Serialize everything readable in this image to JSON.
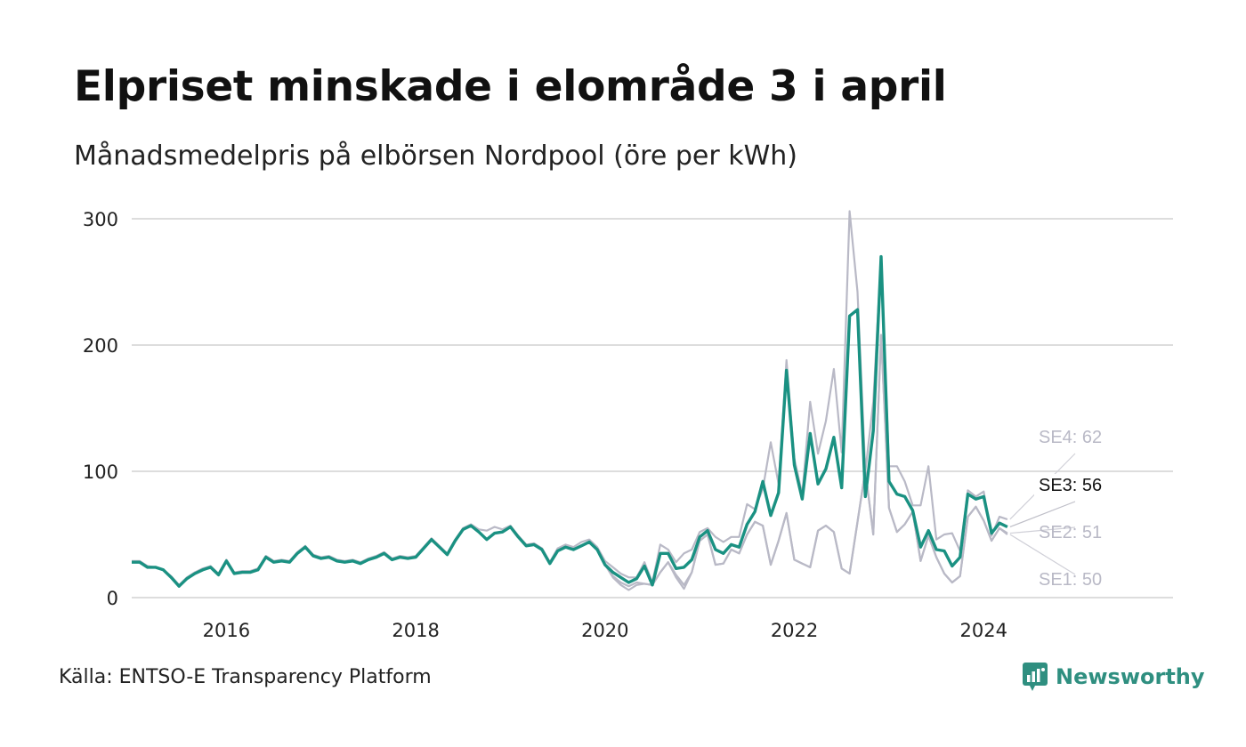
{
  "header": {
    "title": "Elpriset minskade i elområde 3 i april",
    "subtitle": "Månadsmedelpris på elbörsen Nordpool (öre per kWh)"
  },
  "footer": {
    "source": "Källa: ENTSO-E Transparency Platform",
    "brand": "Newsworthy",
    "brand_icon": "bar-chart-icon"
  },
  "colors": {
    "highlight": "#1a9182",
    "context": "#b9b9c6",
    "grid": "#dddddd",
    "brand": "#2f8f80"
  },
  "chart_data": {
    "type": "line",
    "title": "Elpriset minskade i elområde 3 i april",
    "subtitle": "Månadsmedelpris på elbörsen Nordpool (öre per kWh)",
    "xlabel": "",
    "ylabel": "",
    "ylim": [
      0,
      300
    ],
    "yticks": [
      0,
      100,
      200,
      300
    ],
    "xlim": [
      2015.0,
      2026.0
    ],
    "xticks": [
      2016,
      2018,
      2020,
      2022,
      2024
    ],
    "x_start": "2015-01",
    "x_step": "month",
    "grid": true,
    "legend": "direct labels at line ends",
    "highlight": "SE3",
    "series": [
      {
        "name": "SE3",
        "label": "SE3: 56",
        "values": [
          28,
          28,
          24,
          24,
          22,
          16,
          9,
          15,
          19,
          22,
          24,
          18,
          29,
          19,
          20,
          20,
          22,
          32,
          28,
          29,
          28,
          35,
          40,
          33,
          31,
          32,
          29,
          28,
          29,
          27,
          30,
          32,
          35,
          30,
          32,
          31,
          32,
          39,
          46,
          40,
          34,
          45,
          54,
          57,
          52,
          46,
          51,
          52,
          56,
          48,
          41,
          42,
          38,
          27,
          37,
          40,
          38,
          41,
          44,
          38,
          26,
          20,
          16,
          12,
          15,
          25,
          10,
          35,
          35,
          23,
          24,
          30,
          48,
          53,
          38,
          35,
          42,
          40,
          58,
          68,
          92,
          65,
          83,
          180,
          105,
          78,
          130,
          90,
          102,
          127,
          87,
          223,
          228,
          80,
          132,
          270,
          92,
          82,
          80,
          69,
          40,
          53,
          38,
          37,
          25,
          32,
          82,
          78,
          80,
          51,
          59,
          56
        ],
        "end_value": 56
      },
      {
        "name": "SE4",
        "label": "SE4: 62",
        "values": [
          29,
          29,
          25,
          24,
          22,
          17,
          10,
          16,
          20,
          23,
          25,
          19,
          30,
          20,
          21,
          21,
          23,
          33,
          29,
          30,
          29,
          36,
          41,
          34,
          32,
          33,
          30,
          29,
          30,
          28,
          31,
          33,
          36,
          31,
          33,
          32,
          33,
          40,
          47,
          41,
          35,
          46,
          55,
          58,
          54,
          53,
          56,
          54,
          57,
          49,
          42,
          43,
          39,
          28,
          39,
          42,
          40,
          44,
          46,
          40,
          29,
          24,
          19,
          16,
          16,
          28,
          12,
          42,
          38,
          28,
          35,
          38,
          52,
          55,
          48,
          44,
          48,
          48,
          74,
          70,
          86,
          123,
          90,
          188,
          110,
          82,
          155,
          114,
          140,
          181,
          115,
          306,
          242,
          100,
          155,
          270,
          104,
          104,
          92,
          73,
          73,
          104,
          46,
          50,
          51,
          37,
          85,
          80,
          84,
          49,
          64,
          62
        ],
        "end_value": 62
      },
      {
        "name": "SE2",
        "label": "SE2: 51",
        "values": [
          28,
          28,
          24,
          24,
          22,
          16,
          9,
          15,
          19,
          22,
          24,
          18,
          29,
          19,
          20,
          20,
          22,
          32,
          28,
          29,
          28,
          35,
          40,
          33,
          31,
          32,
          29,
          28,
          29,
          27,
          30,
          32,
          35,
          30,
          32,
          31,
          32,
          39,
          46,
          40,
          34,
          45,
          54,
          57,
          52,
          46,
          51,
          52,
          56,
          48,
          41,
          42,
          38,
          27,
          37,
          40,
          38,
          41,
          44,
          38,
          26,
          17,
          12,
          9,
          12,
          11,
          10,
          20,
          28,
          18,
          10,
          20,
          45,
          50,
          26,
          27,
          38,
          35,
          50,
          60,
          57,
          26,
          45,
          67,
          30,
          27,
          24,
          53,
          57,
          52,
          23,
          19,
          60,
          101,
          50,
          208,
          71,
          52,
          58,
          68,
          29,
          49,
          32,
          19,
          12,
          17,
          64,
          72,
          61,
          45,
          55,
          51
        ],
        "end_value": 51
      },
      {
        "name": "SE1",
        "label": "SE1: 50",
        "values": [
          28,
          28,
          24,
          24,
          22,
          16,
          9,
          15,
          19,
          22,
          24,
          18,
          29,
          19,
          20,
          20,
          22,
          32,
          28,
          29,
          28,
          35,
          40,
          33,
          31,
          32,
          29,
          28,
          29,
          27,
          30,
          32,
          35,
          30,
          32,
          31,
          32,
          39,
          46,
          40,
          34,
          45,
          54,
          57,
          52,
          46,
          51,
          52,
          56,
          48,
          41,
          42,
          38,
          27,
          37,
          40,
          38,
          41,
          44,
          38,
          26,
          16,
          10,
          6,
          10,
          11,
          10,
          20,
          28,
          16,
          7,
          20,
          45,
          50,
          26,
          27,
          38,
          35,
          50,
          60,
          57,
          26,
          45,
          67,
          30,
          27,
          24,
          53,
          57,
          52,
          23,
          19,
          60,
          101,
          50,
          208,
          71,
          52,
          58,
          68,
          29,
          49,
          32,
          19,
          12,
          17,
          64,
          72,
          61,
          45,
          55,
          50
        ],
        "end_value": 50
      }
    ]
  }
}
